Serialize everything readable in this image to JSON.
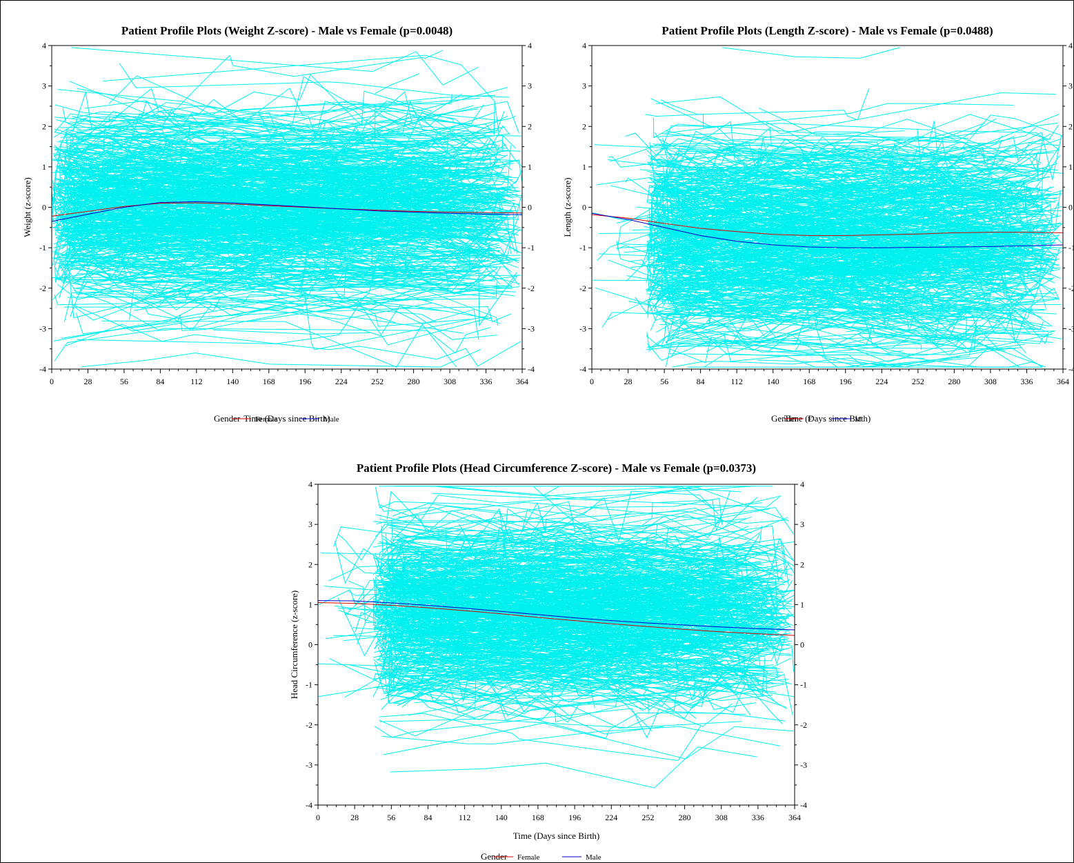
{
  "colors": {
    "profile": "#00f0f0",
    "female": "#e00000",
    "male": "#0000c8",
    "axis": "#000000"
  },
  "chart_data": [
    {
      "type": "line",
      "title": "Patient Profile Plots (Weight Z-score) - Male vs Female (p=0.0048)",
      "xlabel": "Time (Days since Birth)",
      "ylabel": "Weight (z-score)",
      "xlim": [
        0,
        364
      ],
      "ylim": [
        -4,
        4
      ],
      "xticks": [
        "0",
        "28",
        "56",
        "84",
        "112",
        "140",
        "168",
        "196",
        "224",
        "252",
        "280",
        "308",
        "336",
        "364"
      ],
      "yticks": [
        "-4",
        "-3",
        "-2",
        "-1",
        "0",
        "1",
        "2",
        "3",
        "4"
      ],
      "grid": false,
      "legend": {
        "title": "Gender",
        "position": "bottom-center",
        "entries": [
          "Female",
          "Male"
        ]
      },
      "profiles": {
        "count": 600,
        "x_range": [
          0,
          364
        ],
        "y_center": 0.0,
        "y_spread": 1.15,
        "x_start_min": 0
      },
      "series": [
        {
          "name": "Female",
          "x": [
            0,
            28,
            56,
            84,
            112,
            140,
            168,
            196,
            224,
            252,
            280,
            308,
            336,
            364
          ],
          "values": [
            -0.22,
            -0.1,
            0.02,
            0.1,
            0.11,
            0.08,
            0.04,
            0.0,
            -0.04,
            -0.07,
            -0.1,
            -0.12,
            -0.13,
            -0.14
          ]
        },
        {
          "name": "Male",
          "x": [
            0,
            28,
            56,
            84,
            112,
            140,
            168,
            196,
            224,
            252,
            280,
            308,
            336,
            364
          ],
          "values": [
            -0.35,
            -0.17,
            0.0,
            0.12,
            0.14,
            0.11,
            0.06,
            0.01,
            -0.04,
            -0.09,
            -0.12,
            -0.15,
            -0.17,
            -0.18
          ]
        }
      ]
    },
    {
      "type": "line",
      "title": "Patient Profile Plots (Length Z-score) - Male vs Female (p=0.0488)",
      "xlabel": "Time (Days since Birth)",
      "ylabel": "Length (z-score)",
      "xlim": [
        0,
        364
      ],
      "ylim": [
        -4,
        4
      ],
      "xticks": [
        "0",
        "28",
        "56",
        "84",
        "112",
        "140",
        "168",
        "196",
        "224",
        "252",
        "280",
        "308",
        "336",
        "364"
      ],
      "yticks": [
        "-4",
        "-3",
        "-2",
        "-1",
        "0",
        "1",
        "2",
        "3",
        "4"
      ],
      "grid": false,
      "legend": {
        "title": "Gender",
        "position": "bottom-center",
        "entries": [
          "F",
          "M"
        ]
      },
      "profiles": {
        "count": 600,
        "x_range": [
          0,
          364
        ],
        "y_center": -0.85,
        "y_spread": 1.2,
        "x_start_min": 42
      },
      "series": [
        {
          "name": "F",
          "x": [
            0,
            28,
            56,
            84,
            112,
            140,
            168,
            196,
            224,
            252,
            280,
            308,
            336,
            364
          ],
          "values": [
            -0.18,
            -0.27,
            -0.4,
            -0.52,
            -0.6,
            -0.67,
            -0.7,
            -0.7,
            -0.68,
            -0.66,
            -0.63,
            -0.62,
            -0.62,
            -0.63
          ]
        },
        {
          "name": "M",
          "x": [
            0,
            28,
            56,
            84,
            112,
            140,
            168,
            196,
            224,
            252,
            280,
            308,
            336,
            364
          ],
          "values": [
            -0.15,
            -0.3,
            -0.5,
            -0.7,
            -0.84,
            -0.93,
            -0.98,
            -1.0,
            -1.0,
            -0.99,
            -0.98,
            -0.97,
            -0.95,
            -0.93
          ]
        }
      ]
    },
    {
      "type": "line",
      "title": "Patient Profile Plots (Head Circumference Z-score) - Male vs Female (p=0.0373)",
      "xlabel": "Time (Days since Birth)",
      "ylabel": "Head Circumference (z-score)",
      "xlim": [
        0,
        364
      ],
      "ylim": [
        -4,
        4
      ],
      "xticks": [
        "0",
        "28",
        "56",
        "84",
        "112",
        "140",
        "168",
        "196",
        "224",
        "252",
        "280",
        "308",
        "336",
        "364"
      ],
      "yticks": [
        "-4",
        "-3",
        "-2",
        "-1",
        "0",
        "1",
        "2",
        "3",
        "4"
      ],
      "grid": false,
      "legend": {
        "title": "Gender",
        "position": "bottom-center",
        "entries": [
          "Female",
          "Male"
        ]
      },
      "profiles": {
        "count": 600,
        "x_range": [
          0,
          364
        ],
        "y_center": 0.7,
        "y_spread": 1.1,
        "x_start_min": 42
      },
      "series": [
        {
          "name": "Female",
          "x": [
            0,
            28,
            56,
            84,
            112,
            140,
            168,
            196,
            224,
            252,
            280,
            308,
            336,
            364
          ],
          "values": [
            1.05,
            1.03,
            0.98,
            0.92,
            0.85,
            0.77,
            0.68,
            0.6,
            0.52,
            0.45,
            0.38,
            0.32,
            0.27,
            0.23
          ]
        },
        {
          "name": "Male",
          "x": [
            0,
            28,
            56,
            84,
            112,
            140,
            168,
            196,
            224,
            252,
            280,
            308,
            336,
            364
          ],
          "values": [
            1.1,
            1.09,
            1.04,
            0.98,
            0.91,
            0.83,
            0.75,
            0.67,
            0.6,
            0.54,
            0.49,
            0.44,
            0.4,
            0.37
          ]
        }
      ]
    }
  ]
}
